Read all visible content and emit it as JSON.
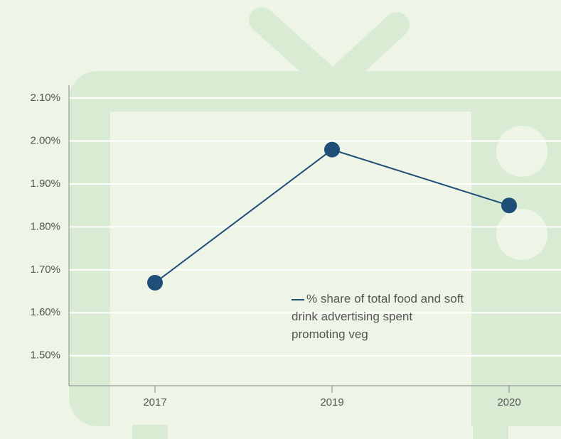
{
  "chart_data": {
    "type": "line",
    "categories": [
      "2017",
      "2019",
      "2020"
    ],
    "series": [
      {
        "name": "% share of total food and soft drink advertising spent promoting veg",
        "color": "#1f4e79",
        "values": [
          1.67,
          1.98,
          1.85
        ]
      }
    ],
    "ylim": [
      1.43,
      2.13
    ],
    "yticks": [
      {
        "value": 1.5,
        "label": "1.50%"
      },
      {
        "value": 1.6,
        "label": "1.60%"
      },
      {
        "value": 1.7,
        "label": "1.70%"
      },
      {
        "value": 1.8,
        "label": "1.80%"
      },
      {
        "value": 1.9,
        "label": "1.90%"
      },
      {
        "value": 2.0,
        "label": "2.00%"
      },
      {
        "value": 2.1,
        "label": "2.10%"
      }
    ],
    "grid": true
  }
}
